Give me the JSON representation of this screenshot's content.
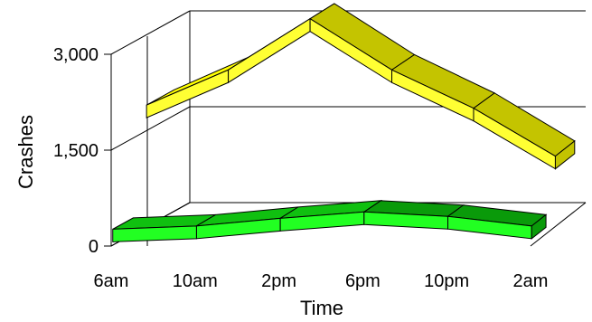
{
  "chart_data": {
    "type": "line",
    "xlabel": "Time",
    "ylabel": "Crashes",
    "categories": [
      "6am",
      "10am",
      "2pm",
      "6pm",
      "10pm",
      "2am"
    ],
    "y_ticks": [
      "0",
      "1,500",
      "3,000"
    ],
    "ylim": [
      0,
      3000
    ],
    "grid": "back wall lines at 1,500 and 3,000",
    "series": [
      {
        "color_top": "#ffff00",
        "color_front": "#ffff33",
        "color_side": "#c4c400",
        "values": [
          1900,
          2450,
          3250,
          2450,
          1850,
          1100
        ]
      },
      {
        "color_top": "#10c010",
        "color_front": "#22ff22",
        "color_side": "#0a9a0a",
        "values": [
          250,
          300,
          420,
          520,
          450,
          300
        ]
      }
    ]
  }
}
